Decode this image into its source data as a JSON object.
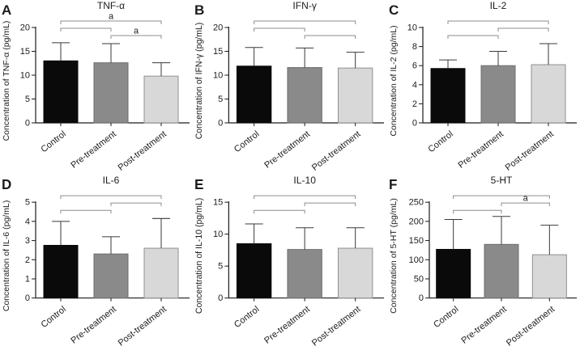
{
  "shared": {
    "categories": [
      "Control",
      "Pre-treatment",
      "Post-treatment"
    ],
    "bar_colors": [
      "#0a0a0a",
      "#8a8a8a",
      "#d8d8d8"
    ],
    "bar_border_colors": [
      "#0a0a0a",
      "#6e6e6e",
      "#909090"
    ],
    "axis_color": "#1a1a1a",
    "error_bar_color": "#3a3a3a",
    "bracket_color": "#8c8c8c",
    "text_color": "#1c1c1c",
    "background": "#ffffff",
    "significance_label": "a"
  },
  "chart_data": [
    {
      "panel": "A",
      "type": "bar",
      "title": "TNF-α",
      "ylabel": "Concentration of TNF-α (pg/mL)",
      "xlabel": "",
      "categories": [
        "Control",
        "Pre-treatment",
        "Post-treatment"
      ],
      "values": [
        13.0,
        12.6,
        9.8
      ],
      "error_top": [
        16.8,
        16.6,
        12.6
      ],
      "ylim": [
        0,
        20
      ],
      "yticks": [
        0,
        5,
        10,
        15,
        20
      ],
      "legend": null,
      "grid": false,
      "brackets": [
        {
          "from": 0,
          "to": 2,
          "label": "a"
        },
        {
          "from": 0,
          "to": 1,
          "label": ""
        },
        {
          "from": 1,
          "to": 2,
          "label": "a"
        }
      ]
    },
    {
      "panel": "B",
      "type": "bar",
      "title": "IFN-γ",
      "ylabel": "Concentration of IFN-γ (pg/mL)",
      "xlabel": "",
      "categories": [
        "Control",
        "Pre-treatment",
        "Post-treatment"
      ],
      "values": [
        11.9,
        11.6,
        11.5
      ],
      "error_top": [
        15.8,
        15.7,
        14.8
      ],
      "ylim": [
        0,
        20
      ],
      "yticks": [
        0,
        5,
        10,
        15,
        20
      ],
      "legend": null,
      "grid": false,
      "brackets": [
        {
          "from": 0,
          "to": 2,
          "label": ""
        },
        {
          "from": 0,
          "to": 1,
          "label": ""
        },
        {
          "from": 1,
          "to": 2,
          "label": ""
        }
      ]
    },
    {
      "panel": "C",
      "type": "bar",
      "title": "IL-2",
      "ylabel": "Concentration of IL-2 (pg/mL)",
      "xlabel": "",
      "categories": [
        "Control",
        "Pre-treatment",
        "Post-treatment"
      ],
      "values": [
        5.7,
        6.0,
        6.1
      ],
      "error_top": [
        6.6,
        7.5,
        8.3
      ],
      "ylim": [
        0,
        10
      ],
      "yticks": [
        0,
        2,
        4,
        6,
        8,
        10
      ],
      "legend": null,
      "grid": false,
      "brackets": [
        {
          "from": 0,
          "to": 2,
          "label": ""
        },
        {
          "from": 1,
          "to": 2,
          "label": ""
        },
        {
          "from": 0,
          "to": 1,
          "label": ""
        }
      ]
    },
    {
      "panel": "D",
      "type": "bar",
      "title": "IL-6",
      "ylabel": "Concentration of IL-6 (pg/mL)",
      "xlabel": "",
      "categories": [
        "Control",
        "Pre-treatment",
        "Post-treatment"
      ],
      "values": [
        2.75,
        2.3,
        2.6
      ],
      "error_top": [
        4.0,
        3.2,
        4.15
      ],
      "ylim": [
        0,
        5
      ],
      "yticks": [
        0,
        1,
        2,
        3,
        4,
        5
      ],
      "legend": null,
      "grid": false,
      "brackets": [
        {
          "from": 0,
          "to": 2,
          "label": ""
        },
        {
          "from": 1,
          "to": 2,
          "label": ""
        },
        {
          "from": 0,
          "to": 1,
          "label": ""
        }
      ]
    },
    {
      "panel": "E",
      "type": "bar",
      "title": "IL-10",
      "ylabel": "Concentration of IL-10 (pg/mL)",
      "xlabel": "",
      "categories": [
        "Control",
        "Pre-treatment",
        "Post-treatment"
      ],
      "values": [
        8.5,
        7.6,
        7.8
      ],
      "error_top": [
        11.6,
        11.0,
        11.0
      ],
      "ylim": [
        0,
        15
      ],
      "yticks": [
        0,
        5,
        10,
        15
      ],
      "legend": null,
      "grid": false,
      "brackets": [
        {
          "from": 0,
          "to": 2,
          "label": ""
        },
        {
          "from": 1,
          "to": 2,
          "label": ""
        },
        {
          "from": 0,
          "to": 1,
          "label": ""
        }
      ]
    },
    {
      "panel": "F",
      "type": "bar",
      "title": "5-HT",
      "ylabel": "Concentration of 5-HT (pg/mL)",
      "xlabel": "",
      "categories": [
        "Control",
        "Pre-treatment",
        "Post-treatment"
      ],
      "values": [
        127,
        140,
        113
      ],
      "error_top": [
        205,
        213,
        190
      ],
      "ylim": [
        0,
        250
      ],
      "yticks": [
        0,
        50,
        100,
        150,
        200,
        250
      ],
      "legend": null,
      "grid": false,
      "brackets": [
        {
          "from": 0,
          "to": 2,
          "label": ""
        },
        {
          "from": 1,
          "to": 2,
          "label": "a"
        },
        {
          "from": 0,
          "to": 1,
          "label": ""
        }
      ]
    }
  ]
}
